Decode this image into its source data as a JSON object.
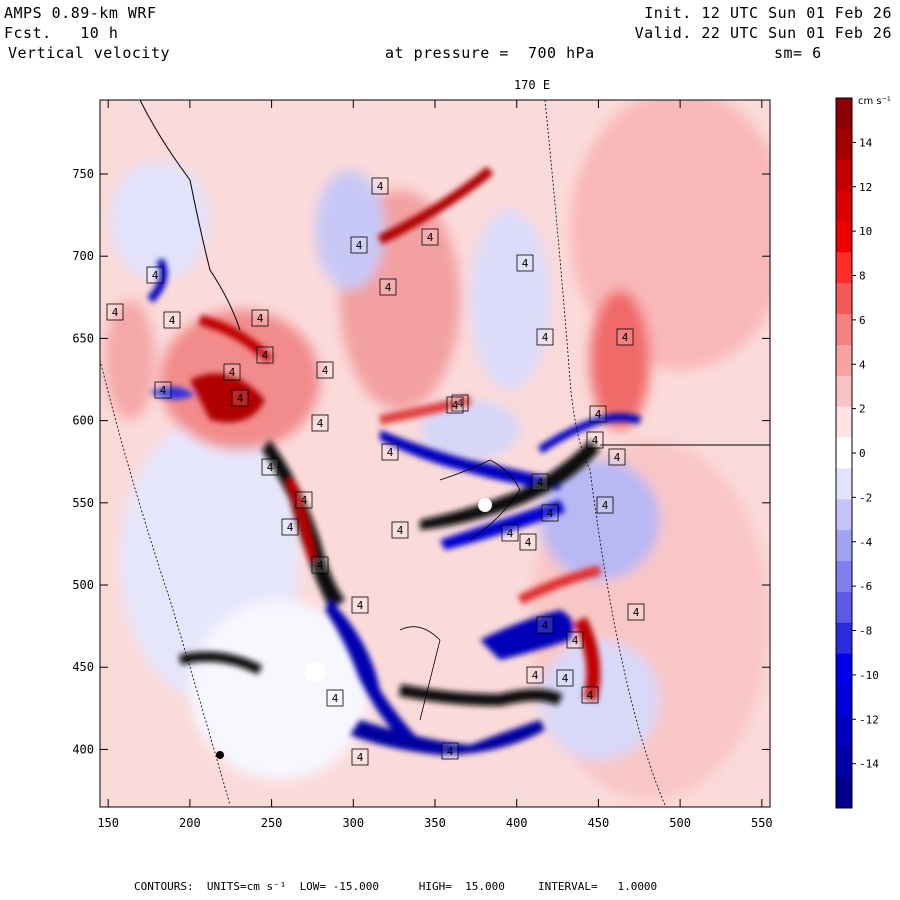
{
  "header": {
    "model": "AMPS 0.89-km WRF",
    "forecast": "Fcst.   10 h",
    "field": "Vertical velocity",
    "init": "Init. 12 UTC Sun 01 Feb 26",
    "valid": "Valid. 22 UTC Sun 01 Feb 26",
    "pressure_label": "at pressure =  700 hPa",
    "smoothing": "sm= 6"
  },
  "map": {
    "top_label": "170 E",
    "x_ticks": [
      "150",
      "200",
      "250",
      "300",
      "350",
      "400",
      "450",
      "500",
      "550"
    ],
    "y_ticks": [
      "750",
      "700",
      "650",
      "600",
      "550",
      "500",
      "450",
      "400"
    ],
    "x_range": [
      145,
      555
    ],
    "y_range": [
      365,
      795
    ],
    "contour_label": "4"
  },
  "colorbar": {
    "unit": "cm s⁻¹",
    "labels": [
      "14",
      "12",
      "10",
      "8",
      "6",
      "4",
      "2",
      "0",
      "-2",
      "-4",
      "-6",
      "-8",
      "-10",
      "-12",
      "-14"
    ],
    "colors": [
      "#8b0000",
      "#a50000",
      "#c20000",
      "#d80000",
      "#ee0000",
      "#ff2a2a",
      "#f45a5a",
      "#f78080",
      "#f9a2a2",
      "#fbc4c4",
      "#fde3e3",
      "#ffffff",
      "#e3e3fd",
      "#c4c4fa",
      "#a2a2f2",
      "#8080ee",
      "#5a5ae6",
      "#2a2ae0",
      "#0000ee",
      "#0000d8",
      "#0000c0",
      "#0000a6",
      "#00008b"
    ]
  },
  "footer": {
    "contours": "CONTOURS:  UNITS=cm s⁻¹  LOW= -15.000      HIGH=  15.000     INTERVAL=   1.0000"
  },
  "colors": {
    "red_strong": "#8b0000",
    "red_light": "#f7a0a0",
    "blue_strong": "#00008b",
    "blue_light": "#c4c4fa"
  }
}
